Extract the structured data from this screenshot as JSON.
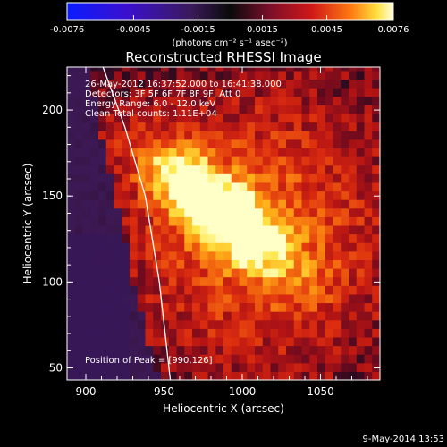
{
  "chart_data": {
    "type": "heatmap",
    "title": "Reconstructed RHESSI Image",
    "colorbar": {
      "ticks": [
        "-0.0076",
        "-0.0045",
        "-0.0015",
        "0.0015",
        "0.0045",
        "0.0076"
      ],
      "range": [
        -0.0076,
        0.0076
      ],
      "units_label": "(photons cm⁻² s⁻¹ asec⁻²)"
    },
    "xlabel": "Heliocentric X (arcsec)",
    "ylabel": "Heliocentric Y (arcsec)",
    "x_ticks": [
      "900",
      "950",
      "1000",
      "1050"
    ],
    "y_ticks": [
      "50",
      "100",
      "150",
      "200"
    ],
    "xlim": [
      888,
      1088
    ],
    "ylim": [
      43,
      225
    ],
    "info_lines": [
      "26-May-2012 16:37:52.000 to 16:41:38.000",
      "Detectors: 3F 5F 6F 7F 8F 9F, Att 0",
      "Energy Range: 6.0 - 12.0 keV",
      "Clean    Total counts: 1.11E+04"
    ],
    "peak_label": "Position of Peak = [990,126]",
    "peak": [
      990,
      126
    ],
    "limb": [
      [
        911,
        225
      ],
      [
        925,
        190
      ],
      [
        938,
        150
      ],
      [
        947,
        100
      ],
      [
        954,
        43
      ]
    ]
  },
  "footer": {
    "date": "9-May-2014 13:53"
  }
}
